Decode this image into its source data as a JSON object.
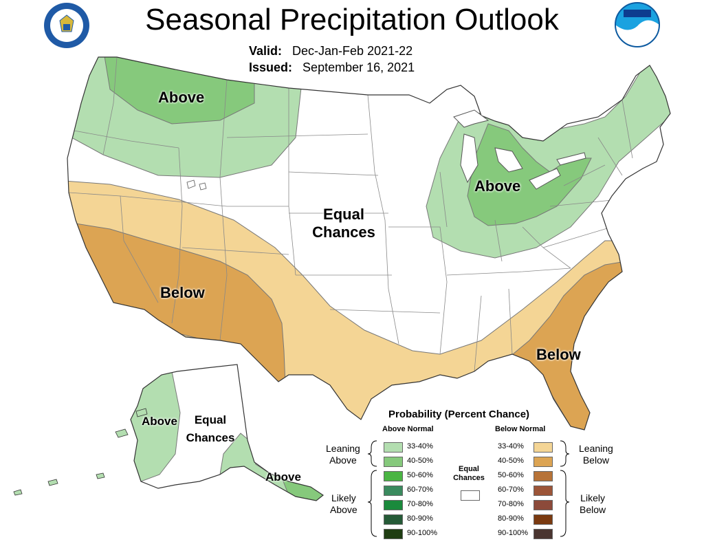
{
  "header": {
    "title": "Seasonal Precipitation Outlook",
    "valid_label": "Valid:",
    "valid_value": "Dec-Jan-Feb 2021-22",
    "issued_label": "Issued:",
    "issued_value": "September 16, 2021"
  },
  "map_labels": {
    "northwest": "Above",
    "great_lakes": "Above",
    "center_line1": "Equal",
    "center_line2": "Chances",
    "southwest": "Below",
    "southeast": "Below",
    "alaska_west": "Above",
    "alaska_center_line1": "Equal",
    "alaska_center_line2": "Chances",
    "alaska_south": "Above"
  },
  "legend": {
    "title": "Probability (Percent Chance)",
    "above_header": "Above Normal",
    "below_header": "Below Normal",
    "equal_line1": "Equal",
    "equal_line2": "Chances",
    "leaning_above_1": "Leaning",
    "leaning_above_2": "Above",
    "likely_above_1": "Likely",
    "likely_above_2": "Above",
    "leaning_below_1": "Leaning",
    "leaning_below_2": "Below",
    "likely_below_1": "Likely",
    "likely_below_2": "Below",
    "above": [
      {
        "label": "33-40%",
        "color": "#b3deb0"
      },
      {
        "label": "40-50%",
        "color": "#86c97c"
      },
      {
        "label": "50-60%",
        "color": "#4ab543"
      },
      {
        "label": "60-70%",
        "color": "#3a8a5e"
      },
      {
        "label": "70-80%",
        "color": "#1a8a3c"
      },
      {
        "label": "80-90%",
        "color": "#255a37"
      },
      {
        "label": "90-100%",
        "color": "#1f3d12"
      }
    ],
    "below": [
      {
        "label": "33-40%",
        "color": "#f4d595"
      },
      {
        "label": "40-50%",
        "color": "#dca453"
      },
      {
        "label": "50-60%",
        "color": "#b77338"
      },
      {
        "label": "60-70%",
        "color": "#9c5538"
      },
      {
        "label": "70-80%",
        "color": "#8c4a3a"
      },
      {
        "label": "80-90%",
        "color": "#7a3a10"
      },
      {
        "label": "90-100%",
        "color": "#4a3530"
      }
    ]
  },
  "colors": {
    "ec": "#ffffff",
    "outline": "#777777"
  },
  "logos": {
    "left": "commerce-seal-icon",
    "right": "noaa-logo-icon"
  }
}
